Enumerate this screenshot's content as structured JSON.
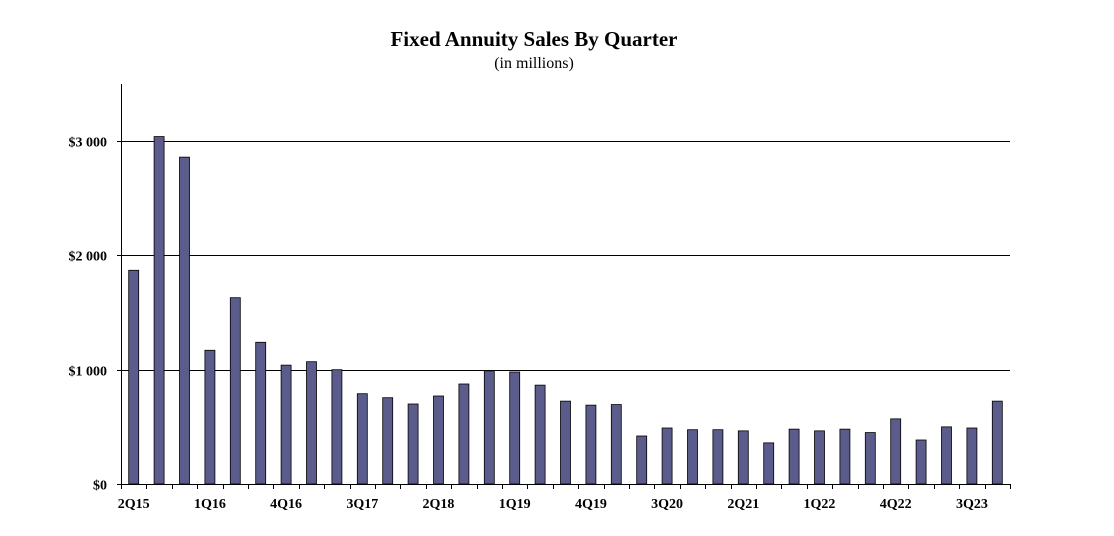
{
  "chart_data": {
    "type": "bar",
    "title": "Fixed Annuity Sales By Quarter",
    "subtitle": "(in millions)",
    "xlabel": "",
    "ylabel": "",
    "ylim": [
      0,
      3500
    ],
    "grid": true,
    "legend": "none",
    "bar_color": "#5c5c8c",
    "bar_edge_color": "#000000",
    "categories": [
      "2Q15",
      "3Q15",
      "4Q15",
      "1Q16",
      "2Q16",
      "3Q16",
      "4Q16",
      "1Q17",
      "2Q17",
      "3Q17",
      "4Q17",
      "1Q18",
      "2Q18",
      "3Q18",
      "4Q18",
      "1Q19",
      "2Q19",
      "3Q19",
      "4Q19",
      "1Q20",
      "2Q20",
      "3Q20",
      "4Q20",
      "1Q21",
      "2Q21",
      "3Q21",
      "4Q21",
      "1Q22",
      "2Q22",
      "3Q22",
      "4Q22",
      "1Q23",
      "2Q23",
      "3Q23",
      "4Q23"
    ],
    "x_tick_labels": [
      "2Q15",
      "",
      "",
      "1Q16",
      "",
      "",
      "4Q16",
      "",
      "",
      "3Q17",
      "",
      "",
      "2Q18",
      "",
      "",
      "1Q19",
      "",
      "",
      "4Q19",
      "",
      "",
      "3Q20",
      "",
      "",
      "2Q21",
      "",
      "",
      "1Q22",
      "",
      "",
      "4Q22",
      "",
      "",
      "3Q23",
      ""
    ],
    "y_tick_values": [
      0,
      1000,
      2000,
      3000
    ],
    "y_tick_labels": [
      "$0",
      "$1 000",
      "$2 000",
      "$3 000"
    ],
    "values": [
      1870,
      3040,
      2860,
      1170,
      1630,
      1240,
      1040,
      1070,
      1000,
      790,
      755,
      700,
      770,
      875,
      990,
      980,
      865,
      725,
      690,
      695,
      420,
      490,
      475,
      475,
      465,
      360,
      480,
      465,
      480,
      450,
      570,
      385,
      500,
      490,
      725
    ]
  }
}
